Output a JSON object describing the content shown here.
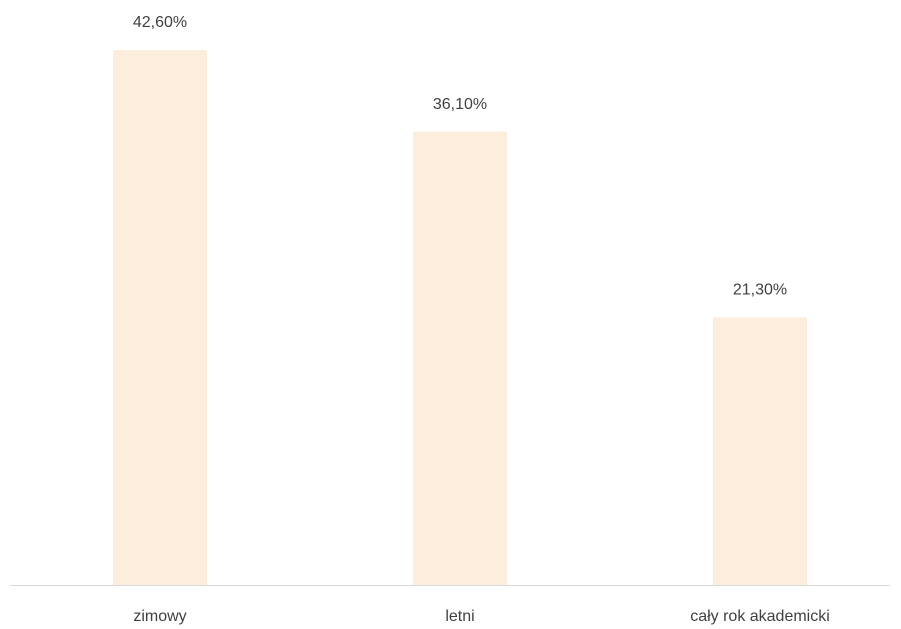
{
  "chart_data": {
    "type": "bar",
    "categories": [
      "zimowy",
      "letni",
      "cały rok akademicki"
    ],
    "values": [
      42.6,
      36.1,
      21.3
    ],
    "value_labels": [
      "42,60%",
      "36,10%",
      "21,30%"
    ],
    "color": "#fdeddc"
  }
}
